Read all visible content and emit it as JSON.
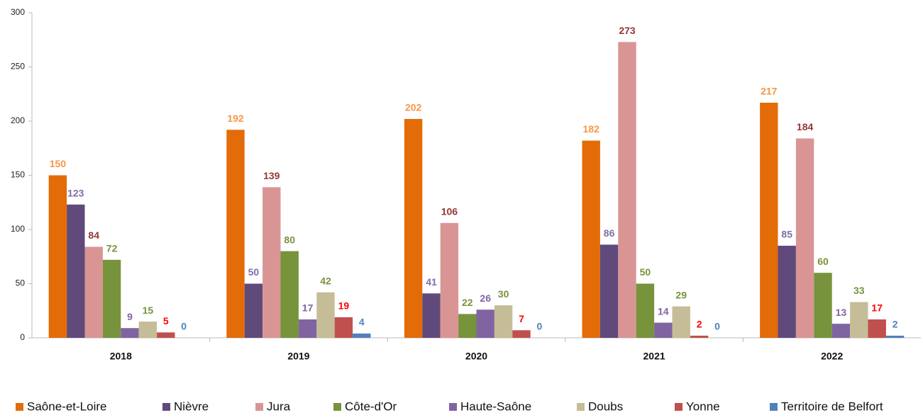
{
  "chart_data": {
    "type": "bar",
    "categories": [
      "2018",
      "2019",
      "2020",
      "2021",
      "2022"
    ],
    "series": [
      {
        "name": "Saône-et-Loire",
        "color": "#e36c09",
        "label_color": "#f79646",
        "values": [
          150,
          192,
          202,
          182,
          217
        ]
      },
      {
        "name": "Nièvre",
        "color": "#604a7b",
        "label_color": "#7f6ea8",
        "values": [
          123,
          50,
          41,
          86,
          85
        ]
      },
      {
        "name": "Jura",
        "color": "#d99594",
        "label_color": "#953735",
        "values": [
          84,
          139,
          106,
          273,
          184
        ]
      },
      {
        "name": "Côte-d'Or",
        "color": "#77933c",
        "label_color": "#77933c",
        "values": [
          72,
          80,
          22,
          50,
          60
        ]
      },
      {
        "name": "Haute-Saône",
        "color": "#8064a2",
        "label_color": "#8064a2",
        "values": [
          9,
          17,
          26,
          14,
          13
        ]
      },
      {
        "name": "Doubs",
        "color": "#c4bd97",
        "label_color": "#77933c",
        "values": [
          15,
          42,
          30,
          29,
          33
        ]
      },
      {
        "name": "Yonne",
        "color": "#c0504d",
        "label_color": "#ff0000",
        "values": [
          5,
          19,
          7,
          2,
          17
        ]
      },
      {
        "name": "Territoire de Belfort",
        "color": "#4f81bd",
        "label_color": "#4f81bd",
        "values": [
          0,
          4,
          0,
          0,
          2
        ]
      }
    ],
    "ylim": [
      0,
      300
    ],
    "yticks": [
      0,
      50,
      100,
      150,
      200,
      250,
      300
    ],
    "grid": false,
    "legend": "bottom"
  }
}
